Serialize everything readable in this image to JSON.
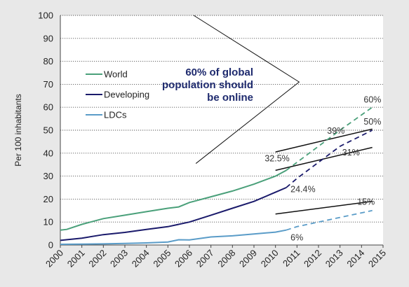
{
  "chart_data": {
    "type": "line",
    "ylabel": "Per 100 inhabitants",
    "xlabel": "",
    "ylim": [
      0,
      100
    ],
    "xlim": [
      2000,
      2015
    ],
    "yticks": [
      0,
      10,
      20,
      30,
      40,
      50,
      60,
      70,
      80,
      90,
      100
    ],
    "xticks": [
      "2000",
      "2001",
      "2002",
      "2003",
      "2004",
      "2005",
      "2006",
      "2007",
      "2008",
      "2009",
      "2010",
      "2011",
      "2012",
      "2013",
      "2014",
      "2015"
    ],
    "grid": "horizontal dotted",
    "legend_position": "upper-left",
    "series": [
      {
        "name": "World",
        "color": "#4aa07a",
        "values_actual": [
          [
            2000,
            6.5
          ],
          [
            2000.3,
            6.8
          ],
          [
            2001,
            9
          ],
          [
            2002,
            11.5
          ],
          [
            2003,
            13
          ],
          [
            2004,
            14.5
          ],
          [
            2005,
            16
          ],
          [
            2005.5,
            16.6
          ],
          [
            2006,
            18.5
          ],
          [
            2007,
            21
          ],
          [
            2008,
            23.5
          ],
          [
            2009,
            26.5
          ],
          [
            2010,
            30
          ],
          [
            2010.5,
            32.5
          ]
        ],
        "values_projected": [
          [
            2010.5,
            32.5
          ],
          [
            2011,
            36
          ],
          [
            2012,
            43
          ],
          [
            2013,
            50
          ],
          [
            2014.5,
            60
          ]
        ]
      },
      {
        "name": "Developing",
        "color": "#1a1a6b",
        "values_actual": [
          [
            2000,
            2
          ],
          [
            2001,
            3
          ],
          [
            2002,
            4.5
          ],
          [
            2003,
            5.5
          ],
          [
            2004,
            6.8
          ],
          [
            2005,
            8
          ],
          [
            2006,
            10
          ],
          [
            2007,
            13
          ],
          [
            2008,
            16
          ],
          [
            2009,
            19
          ],
          [
            2010,
            23
          ],
          [
            2010.5,
            25
          ]
        ],
        "values_projected": [
          [
            2010.5,
            25
          ],
          [
            2011,
            29
          ],
          [
            2012,
            36
          ],
          [
            2013,
            43
          ],
          [
            2014.5,
            50
          ]
        ]
      },
      {
        "name": "LDCs",
        "color": "#5a9cc8",
        "values_actual": [
          [
            2000,
            0.3
          ],
          [
            2001,
            0.4
          ],
          [
            2002,
            0.5
          ],
          [
            2003,
            0.7
          ],
          [
            2004,
            0.9
          ],
          [
            2005,
            1.3
          ],
          [
            2005.5,
            2.3
          ],
          [
            2006,
            2.2
          ],
          [
            2007,
            3.5
          ],
          [
            2008,
            4
          ],
          [
            2009,
            4.8
          ],
          [
            2010,
            5.6
          ],
          [
            2010.5,
            6.5
          ]
        ],
        "values_projected": [
          [
            2010.5,
            6.5
          ],
          [
            2011,
            8
          ],
          [
            2012,
            10
          ],
          [
            2013,
            12
          ],
          [
            2014.5,
            15
          ]
        ]
      }
    ],
    "target_lines": [
      {
        "from": [
          2010,
          40.5
        ],
        "to": [
          2014.5,
          50.5
        ]
      },
      {
        "from": [
          2010,
          32.5
        ],
        "to": [
          2014.5,
          42.5
        ]
      },
      {
        "from": [
          2010,
          13.5
        ],
        "to": [
          2014.5,
          19
        ]
      }
    ],
    "annotations": [
      {
        "text": "60%",
        "x": 2014.1,
        "y": 62,
        "color": "#333"
      },
      {
        "text": "50%",
        "x": 2014.1,
        "y": 52.5,
        "color": "#333"
      },
      {
        "text": "39%",
        "x": 2012.4,
        "y": 48.5,
        "color": "#333"
      },
      {
        "text": "32.5%",
        "x": 2009.5,
        "y": 36.5,
        "color": "#333"
      },
      {
        "text": "31%",
        "x": 2013.1,
        "y": 39,
        "color": "#333"
      },
      {
        "text": "24.4%",
        "x": 2010.7,
        "y": 23,
        "color": "#333"
      },
      {
        "text": "15%",
        "x": 2013.8,
        "y": 17.5,
        "color": "#333"
      },
      {
        "text": "6%",
        "x": 2010.7,
        "y": 2,
        "color": "#333"
      }
    ],
    "callout": {
      "lines": [
        "60% of global",
        "population should",
        "be online"
      ],
      "color": "#1e2a6e"
    },
    "callout_pointer": {
      "points": [
        [
          2006.2,
          100
        ],
        [
          2011.1,
          71
        ],
        [
          2006.3,
          35.5
        ]
      ]
    }
  }
}
